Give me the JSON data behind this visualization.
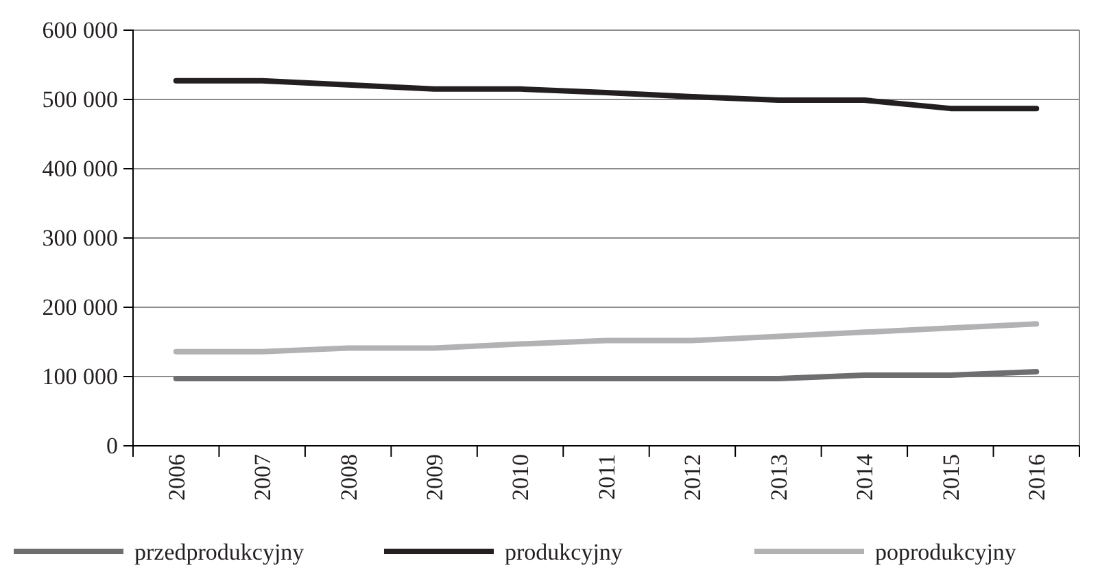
{
  "chart_data": {
    "type": "line",
    "categories": [
      "2006",
      "2007",
      "2008",
      "2009",
      "2010",
      "2011",
      "2012",
      "2013",
      "2014",
      "2015",
      "2016"
    ],
    "series": [
      {
        "name": "przedprodukcyjny",
        "color": "#6e6e70",
        "values": [
          97000,
          97000,
          97000,
          97000,
          97000,
          97000,
          97000,
          97000,
          102000,
          102000,
          107000
        ]
      },
      {
        "name": "produkcyjny",
        "color": "#231f20",
        "values": [
          527000,
          527000,
          521000,
          515000,
          515000,
          510000,
          504000,
          499000,
          499000,
          487000,
          487000
        ]
      },
      {
        "name": "poprodukcyjny",
        "color": "#b2b2b4",
        "values": [
          136000,
          136000,
          141000,
          141000,
          147000,
          152000,
          152000,
          158000,
          164000,
          170000,
          176000
        ]
      }
    ],
    "ylim": [
      0,
      600000
    ],
    "yticks": [
      {
        "value": 0,
        "label": "0"
      },
      {
        "value": 100000,
        "label": "100 000"
      },
      {
        "value": 200000,
        "label": "200 000"
      },
      {
        "value": 300000,
        "label": "300 000"
      },
      {
        "value": 400000,
        "label": "400 000"
      },
      {
        "value": 500000,
        "label": "500 000"
      },
      {
        "value": 600000,
        "label": "600 000"
      }
    ],
    "grid": "y",
    "legend": "bottom",
    "marker": "none",
    "line_style": "solid"
  }
}
